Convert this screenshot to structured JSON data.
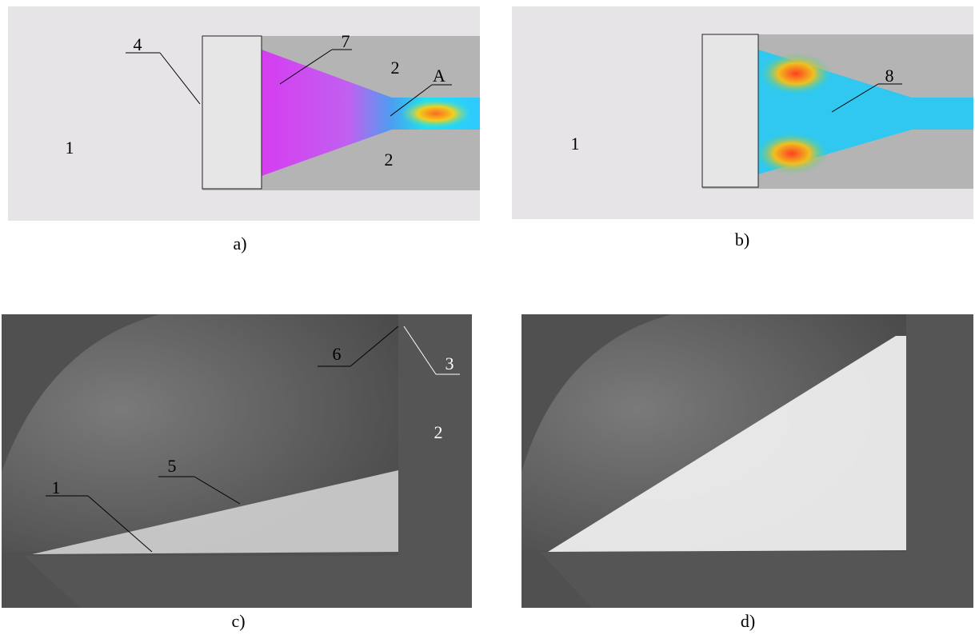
{
  "panels": [
    {
      "caption": "a)",
      "labels": [
        "4",
        "7",
        "2",
        "A",
        "2",
        "1"
      ]
    },
    {
      "caption": "b)",
      "labels": [
        "1",
        "8"
      ]
    },
    {
      "caption": "c)",
      "labels": [
        "6",
        "3",
        "2",
        "5",
        "1"
      ]
    },
    {
      "caption": "d)",
      "labels": []
    }
  ]
}
